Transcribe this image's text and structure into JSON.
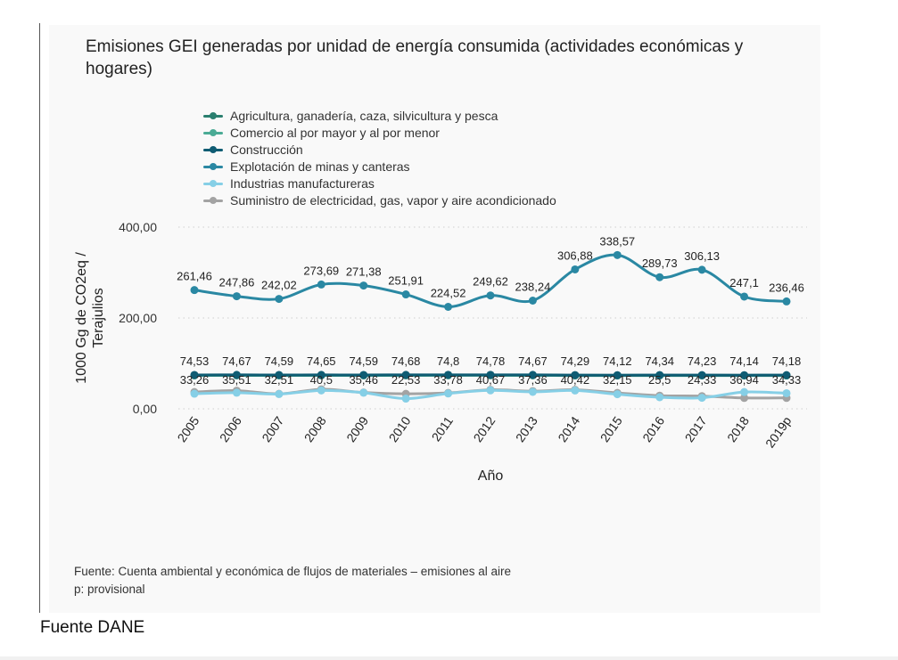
{
  "chart_data": {
    "type": "line",
    "title": "Emisiones GEI generadas por unidad de energía consumida (actividades económicas y hogares)",
    "xlabel": "Año",
    "ylabel": "1000 Gg de CO2eq / Terajulios",
    "ylim": [
      0,
      400
    ],
    "yticks": [
      "0,00",
      "200,00",
      "400,00"
    ],
    "ytick_values": [
      0,
      200,
      400
    ],
    "grid": true,
    "legend_position": "top-left",
    "categories": [
      "2005",
      "2006",
      "2007",
      "2008",
      "2009",
      "2010",
      "2011",
      "2012",
      "2013",
      "2014",
      "2015",
      "2016",
      "2017",
      "2018",
      "2019p"
    ],
    "series": [
      {
        "name": "Agricultura, ganadería, caza, silvicultura y pesca",
        "color": "#2a7f6f",
        "labeled": false,
        "values": [
          74.0,
          74.2,
          74.1,
          74.2,
          74.1,
          74.2,
          74.3,
          74.3,
          74.2,
          73.8,
          73.7,
          73.9,
          73.8,
          73.7,
          73.7
        ]
      },
      {
        "name": "Comercio al por mayor y al por menor",
        "color": "#4aab95",
        "labeled": false,
        "values": [
          73.5,
          73.6,
          73.5,
          73.6,
          73.5,
          73.6,
          73.7,
          73.7,
          73.6,
          73.3,
          73.2,
          73.4,
          73.3,
          73.2,
          73.2
        ]
      },
      {
        "name": "Construcción",
        "color": "#0f5c73",
        "labeled": true,
        "values": [
          74.53,
          74.67,
          74.59,
          74.65,
          74.59,
          74.68,
          74.8,
          74.78,
          74.67,
          74.29,
          74.12,
          74.34,
          74.23,
          74.14,
          74.18
        ],
        "labels": [
          "74,53",
          "74,67",
          "74,59",
          "74,65",
          "74,59",
          "74,68",
          "74,8",
          "74,78",
          "74,67",
          "74,29",
          "74,12",
          "74,34",
          "74,23",
          "74,14",
          "74,18"
        ]
      },
      {
        "name": "Explotación de minas y canteras",
        "color": "#2a88a3",
        "labeled": true,
        "values": [
          261.46,
          247.86,
          242.02,
          273.69,
          271.38,
          251.91,
          224.52,
          249.62,
          238.24,
          306.88,
          338.57,
          289.73,
          306.13,
          247.1,
          236.46
        ],
        "labels": [
          "261,46",
          "247,86",
          "242,02",
          "273,69",
          "271,38",
          "251,91",
          "224,52",
          "249,62",
          "238,24",
          "306,88",
          "338,57",
          "289,73",
          "306,13",
          "247,1",
          "236,46"
        ]
      },
      {
        "name": "Industrias manufactureras",
        "color": "#86cfe6",
        "labeled": true,
        "values": [
          33.26,
          35.51,
          32.51,
          40.5,
          35.46,
          22.53,
          33.78,
          40.67,
          37.36,
          40.42,
          32.15,
          25.5,
          24.33,
          36.94,
          34.33
        ],
        "labels": [
          "33,26",
          "35,51",
          "32,51",
          "40,5",
          "35,46",
          "22,53",
          "33,78",
          "40,67",
          "37,36",
          "40,42",
          "32,15",
          "25,5",
          "24,33",
          "36,94",
          "34,33"
        ]
      },
      {
        "name": "Suministro de electricidad, gas, vapor y aire acondicionado",
        "color": "#a3a3a3",
        "labeled": false,
        "values": [
          37,
          40,
          33,
          43,
          36,
          33,
          35,
          42,
          39,
          42,
          35,
          29,
          28,
          24,
          24
        ]
      }
    ]
  },
  "footnote": {
    "source": "Fuente: Cuenta ambiental y económica de flujos de materiales – emisiones al aire",
    "note": "p: provisional"
  },
  "caption": "Fuente DANE"
}
